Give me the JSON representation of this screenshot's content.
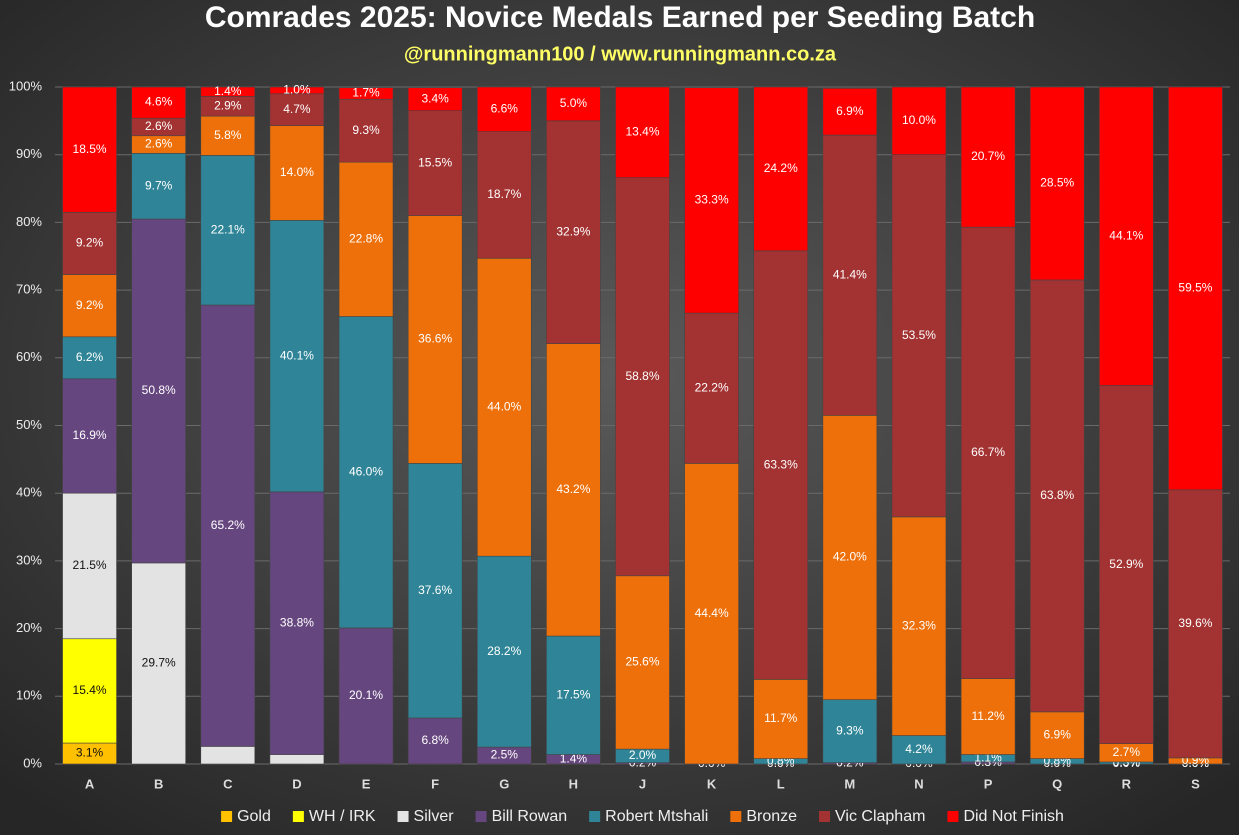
{
  "chart_data": {
    "type": "stacked_bar",
    "title": "Comrades 2025: Novice Medals Earned per Seeding Batch",
    "subtitle": "@runningmann100 / www.runningmann.co.za",
    "categories": [
      "A",
      "B",
      "C",
      "D",
      "E",
      "F",
      "G",
      "H",
      "J",
      "K",
      "L",
      "M",
      "N",
      "P",
      "Q",
      "R",
      "S"
    ],
    "ylim": [
      0,
      100
    ],
    "yticks": [
      {
        "value": 0,
        "label": "0%"
      },
      {
        "value": 10,
        "label": "10%"
      },
      {
        "value": 20,
        "label": "20%"
      },
      {
        "value": 30,
        "label": "30%"
      },
      {
        "value": 40,
        "label": "40%"
      },
      {
        "value": 50,
        "label": "50%"
      },
      {
        "value": 60,
        "label": "60%"
      },
      {
        "value": 70,
        "label": "70%"
      },
      {
        "value": 80,
        "label": "80%"
      },
      {
        "value": 90,
        "label": "90%"
      },
      {
        "value": 100,
        "label": "100%"
      }
    ],
    "grid": true,
    "legend": "bottom",
    "series": [
      {
        "name": "Gold",
        "color": "#ffc000",
        "values": [
          3.1,
          0,
          0,
          0,
          0,
          0,
          0,
          0,
          0,
          0,
          0,
          0,
          0,
          0,
          0,
          0,
          0
        ],
        "value_labels": [
          "3.1%",
          null,
          null,
          null,
          null,
          null,
          null,
          null,
          null,
          null,
          null,
          null,
          null,
          null,
          null,
          null,
          null
        ]
      },
      {
        "name": "WH / IRK",
        "color": "#ffff00",
        "values": [
          15.4,
          0,
          0,
          0,
          0,
          0,
          0,
          0,
          0,
          0,
          0,
          0,
          0,
          0,
          0,
          0,
          0
        ],
        "value_labels": [
          "15.4%",
          null,
          null,
          null,
          null,
          null,
          null,
          null,
          null,
          null,
          null,
          null,
          null,
          null,
          null,
          null,
          null
        ]
      },
      {
        "name": "Silver",
        "color": "#e3e3e3",
        "values": [
          21.5,
          29.7,
          2.6,
          1.4,
          0,
          0,
          0,
          0,
          0,
          0,
          0,
          0,
          0,
          0,
          0,
          0,
          0
        ],
        "value_labels": [
          "21.5%",
          "29.7%",
          null,
          null,
          null,
          null,
          null,
          null,
          null,
          null,
          null,
          null,
          null,
          null,
          null,
          null,
          null
        ]
      },
      {
        "name": "Bill Rowan",
        "color": "#66467f",
        "values": [
          16.9,
          50.8,
          65.2,
          38.8,
          20.1,
          6.8,
          2.5,
          1.4,
          0.2,
          0,
          0,
          0.2,
          0,
          0.3,
          0,
          0,
          0
        ],
        "value_labels": [
          "16.9%",
          "50.8%",
          "65.2%",
          "38.8%",
          "20.1%",
          "6.8%",
          "2.5%",
          "1.4%",
          "0.2%",
          null,
          "0.0%",
          "0.2%",
          "0.0%",
          "0.3%",
          "0.0%",
          "0.0%",
          "0.0%"
        ]
      },
      {
        "name": "Robert Mtshali",
        "color": "#2f8597",
        "values": [
          6.2,
          9.7,
          22.1,
          40.1,
          46.0,
          37.6,
          28.2,
          17.5,
          2.0,
          0.0,
          0.8,
          9.3,
          4.2,
          1.1,
          0.8,
          0.3,
          0.0
        ],
        "value_labels": [
          "6.2%",
          "9.7%",
          "22.1%",
          "40.1%",
          "46.0%",
          "37.6%",
          "28.2%",
          "17.5%",
          "2.0%",
          "0.0%",
          "0.8%",
          "9.3%",
          "4.2%",
          "1.1%",
          "0.8%",
          "0.3%",
          "0.0%"
        ]
      },
      {
        "name": "Bronze",
        "color": "#ed700a",
        "values": [
          9.2,
          2.6,
          5.8,
          14.0,
          22.8,
          36.6,
          44.0,
          43.2,
          25.6,
          44.4,
          11.7,
          42.0,
          32.3,
          11.2,
          6.9,
          2.7,
          0.9
        ],
        "value_labels": [
          "9.2%",
          "2.6%",
          "5.8%",
          "14.0%",
          "22.8%",
          "36.6%",
          "44.0%",
          "43.2%",
          "25.6%",
          "44.4%",
          "11.7%",
          "42.0%",
          "32.3%",
          "11.2%",
          "6.9%",
          "2.7%",
          "0.9%"
        ]
      },
      {
        "name": "Vic Clapham",
        "color": "#a33232",
        "values": [
          9.2,
          2.6,
          2.9,
          4.7,
          9.3,
          15.5,
          18.7,
          32.9,
          58.8,
          22.2,
          63.3,
          41.4,
          53.5,
          66.7,
          63.8,
          52.9,
          39.6
        ],
        "value_labels": [
          "9.2%",
          "2.6%",
          "2.9%",
          "4.7%",
          "9.3%",
          "15.5%",
          "18.7%",
          "32.9%",
          "58.8%",
          "22.2%",
          "63.3%",
          "41.4%",
          "53.5%",
          "66.7%",
          "63.8%",
          "52.9%",
          "39.6%"
        ]
      },
      {
        "name": "Did Not Finish",
        "color": "#ff0000",
        "values": [
          18.5,
          4.6,
          1.4,
          1.0,
          1.7,
          3.4,
          6.6,
          5.0,
          13.4,
          33.3,
          24.2,
          6.9,
          10.0,
          20.7,
          28.5,
          44.1,
          59.5
        ],
        "value_labels": [
          "18.5%",
          "4.6%",
          "1.4%",
          "1.0%",
          "1.7%",
          "3.4%",
          "6.6%",
          "5.0%",
          "13.4%",
          "33.3%",
          "24.2%",
          "6.9%",
          "10.0%",
          "20.7%",
          "28.5%",
          "44.1%",
          "59.5%"
        ]
      }
    ]
  }
}
